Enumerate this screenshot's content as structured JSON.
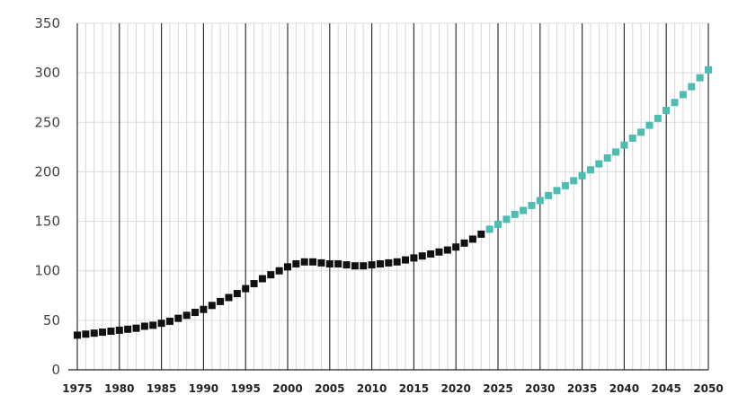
{
  "chart_data": {
    "type": "scatter",
    "title": "",
    "xlabel": "",
    "ylabel": "",
    "xlim": [
      1975,
      2050
    ],
    "ylim": [
      0,
      350
    ],
    "x_ticks": [
      1975,
      1980,
      1985,
      1990,
      1995,
      2000,
      2005,
      2010,
      2015,
      2020,
      2025,
      2030,
      2035,
      2040,
      2045,
      2050
    ],
    "y_ticks": [
      0,
      50,
      100,
      150,
      200,
      250,
      300,
      350
    ],
    "grid": true,
    "legend": "none",
    "series": [
      {
        "color": "#111111",
        "x": [
          1975,
          1976,
          1977,
          1978,
          1979,
          1980,
          1981,
          1982,
          1983,
          1984,
          1985,
          1986,
          1987,
          1988,
          1989,
          1990,
          1991,
          1992,
          1993,
          1994,
          1995,
          1996,
          1997,
          1998,
          1999,
          2000,
          2001,
          2002,
          2003,
          2004,
          2005,
          2006,
          2007,
          2008,
          2009,
          2010,
          2011,
          2012,
          2013,
          2014,
          2015,
          2016,
          2017,
          2018,
          2019,
          2020,
          2021,
          2022,
          2023
        ],
        "y": [
          35,
          36,
          37,
          38,
          39,
          40,
          41,
          42,
          44,
          45,
          47,
          49,
          52,
          55,
          58,
          61,
          65,
          69,
          73,
          77,
          82,
          87,
          92,
          96,
          100,
          104,
          107,
          109,
          109,
          108,
          107,
          107,
          106,
          105,
          105,
          106,
          107,
          108,
          109,
          111,
          113,
          115,
          117,
          119,
          121,
          124,
          128,
          132,
          137
        ]
      },
      {
        "color": "#4dbdb2",
        "x": [
          2024,
          2025,
          2026,
          2027,
          2028,
          2029,
          2030,
          2031,
          2032,
          2033,
          2034,
          2035,
          2036,
          2037,
          2038,
          2039,
          2040,
          2041,
          2042,
          2043,
          2044,
          2045,
          2046,
          2047,
          2048,
          2049,
          2050
        ],
        "y": [
          142,
          147,
          152,
          157,
          161,
          166,
          171,
          176,
          181,
          186,
          191,
          196,
          202,
          208,
          214,
          220,
          227,
          234,
          240,
          247,
          254,
          262,
          270,
          278,
          286,
          295,
          303
        ]
      }
    ]
  }
}
